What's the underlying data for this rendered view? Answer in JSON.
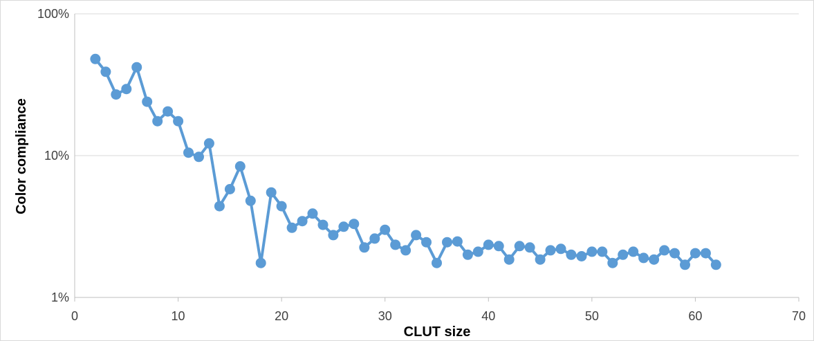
{
  "chart_data": {
    "type": "line",
    "title": "",
    "xlabel": "CLUT size",
    "ylabel": "Color compliance",
    "y_scale": "log",
    "xlim": [
      0,
      70
    ],
    "ylim": [
      1,
      100
    ],
    "x_ticks": [
      0,
      10,
      20,
      30,
      40,
      50,
      60,
      70
    ],
    "x_tick_labels": [
      "0",
      "10",
      "20",
      "30",
      "40",
      "50",
      "60",
      "70"
    ],
    "y_ticks": [
      1,
      10,
      100
    ],
    "y_tick_labels": [
      "1%",
      "10%",
      "100%"
    ],
    "grid": "horizontal",
    "legend": "none",
    "series": [
      {
        "color": "#5B9BD5",
        "x": [
          2,
          3,
          4,
          5,
          6,
          7,
          8,
          9,
          10,
          11,
          12,
          13,
          14,
          15,
          16,
          17,
          18,
          19,
          20,
          21,
          22,
          23,
          24,
          25,
          26,
          27,
          28,
          29,
          30,
          31,
          32,
          33,
          34,
          35,
          36,
          37,
          38,
          39,
          40,
          41,
          42,
          43,
          44,
          45,
          46,
          47,
          48,
          49,
          50,
          51,
          52,
          53,
          54,
          55,
          56,
          57,
          58,
          59,
          60,
          61,
          62
        ],
        "values": [
          48,
          39,
          27,
          29.5,
          42,
          24,
          17.5,
          20.5,
          17.5,
          10.5,
          9.8,
          12.2,
          4.4,
          5.8,
          8.4,
          4.8,
          1.75,
          5.5,
          4.4,
          3.1,
          3.45,
          3.9,
          3.25,
          2.75,
          3.15,
          3.3,
          2.25,
          2.6,
          3.0,
          2.35,
          2.15,
          2.75,
          2.45,
          1.75,
          2.45,
          2.48,
          2.0,
          2.1,
          2.35,
          2.3,
          1.85,
          2.3,
          2.25,
          1.85,
          2.15,
          2.2,
          2.0,
          1.95,
          2.1,
          2.1,
          1.75,
          2.0,
          2.1,
          1.9,
          1.85,
          2.15,
          2.05,
          1.7,
          2.05,
          2.05,
          1.7
        ]
      }
    ]
  }
}
